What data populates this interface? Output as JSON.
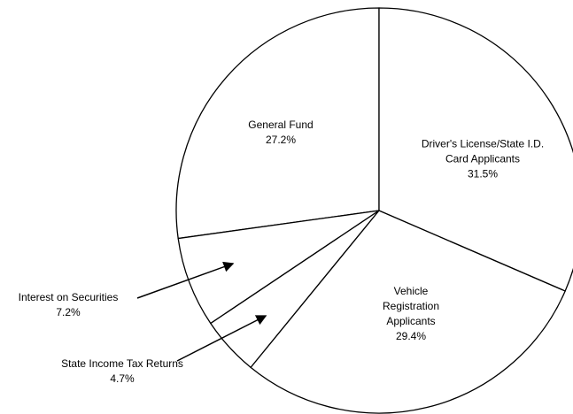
{
  "chart_data": {
    "type": "pie",
    "categories": [
      "Driver's License/State I.D. Card Applicants",
      "Vehicle Registration Applicants",
      "State Income Tax Returns",
      "Interest on Securities",
      "General Fund"
    ],
    "values": [
      31.5,
      29.4,
      4.7,
      7.2,
      27.2
    ],
    "value_labels": [
      "31.5%",
      "29.4%",
      "4.7%",
      "7.2%",
      "27.2%"
    ],
    "color": "#ffffff"
  }
}
